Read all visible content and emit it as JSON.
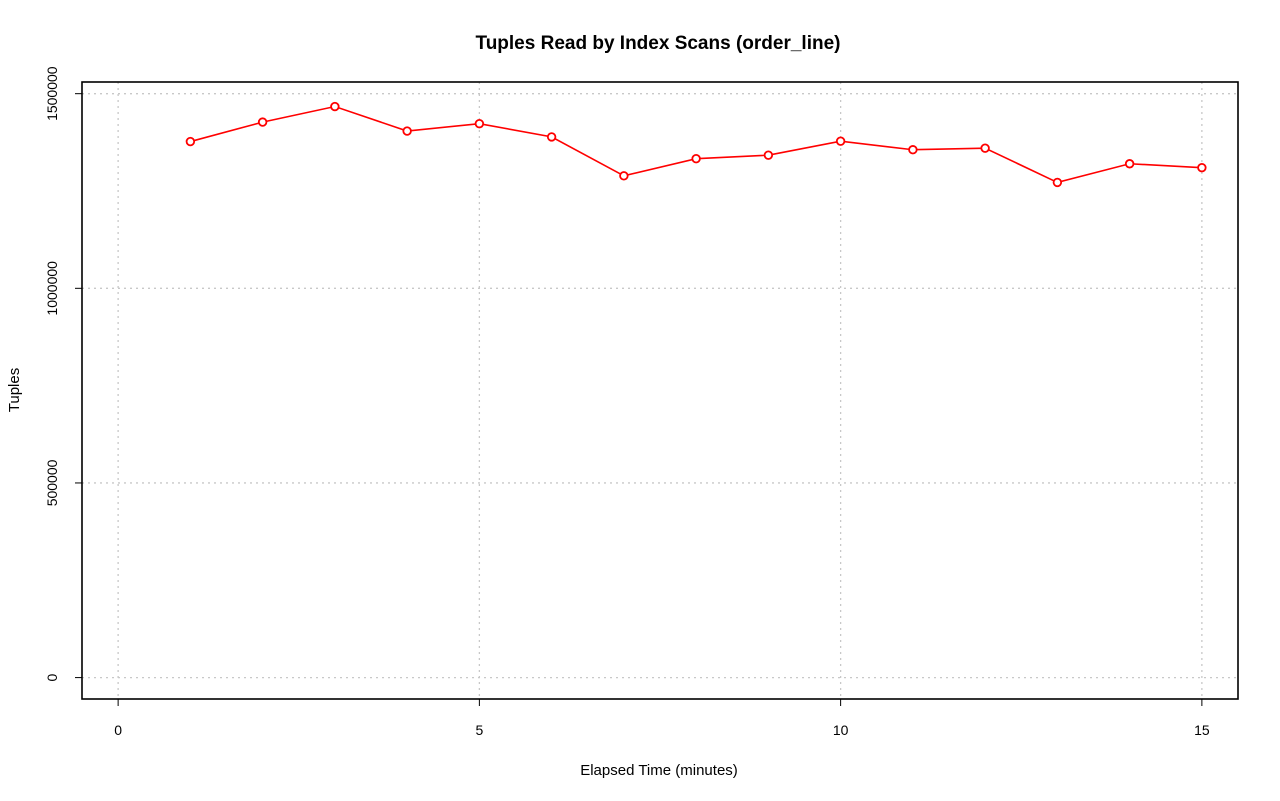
{
  "chart_data": {
    "type": "line",
    "title": "Tuples Read by Index Scans (order_line)",
    "xlabel": "Elapsed Time (minutes)",
    "ylabel": "Tuples",
    "xlim": [
      -0.5,
      15.5
    ],
    "ylim": [
      -55000,
      1530000
    ],
    "x_ticks": [
      0,
      5,
      10,
      15
    ],
    "y_ticks": [
      0,
      500000,
      1000000,
      1500000
    ],
    "x_tick_labels": [
      "0",
      "5",
      "10",
      "15"
    ],
    "y_tick_labels": [
      "0",
      "500000",
      "1000000",
      "1500000"
    ],
    "grid": true,
    "legend": "none",
    "colors": {
      "series": "#ff0000",
      "grid": "#c8c8c8",
      "frame": "#000000"
    },
    "series": [
      {
        "x": [
          1,
          2,
          3,
          4,
          5,
          6,
          7,
          8,
          9,
          10,
          11,
          12,
          13,
          14,
          15
        ],
        "values": [
          1377000,
          1427000,
          1467000,
          1404000,
          1423000,
          1389000,
          1289000,
          1333000,
          1342000,
          1378000,
          1356000,
          1360000,
          1272000,
          1320000,
          1310000
        ],
        "marker": "open-circle"
      }
    ]
  }
}
